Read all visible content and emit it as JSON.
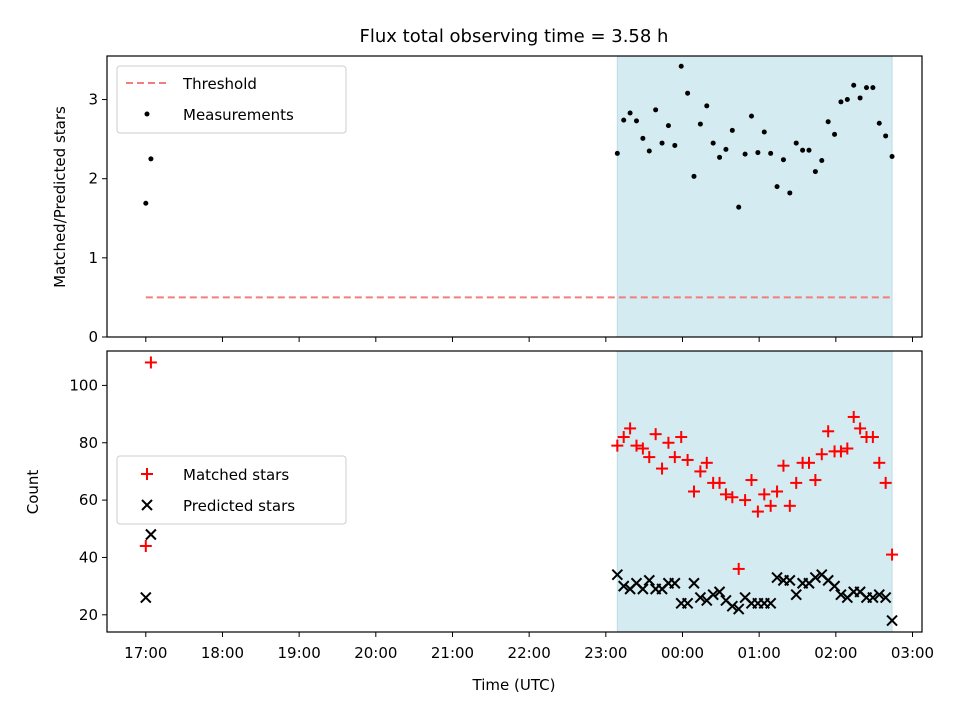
{
  "chart_data": [
    {
      "type": "scatter",
      "title": "Flux total observing time = 3.58 h",
      "ylabel": "Matched/Predicted stars",
      "xlabel": "",
      "ylim": [
        0,
        3.55
      ],
      "yticks": [
        0,
        1,
        2,
        3
      ],
      "legend_position": "upper-left",
      "shaded_region": {
        "start": "23:09",
        "end": "02:44",
        "color": "#d4ebf1"
      },
      "threshold": {
        "name": "Threshold",
        "value": 0.5,
        "x_start": "17:00",
        "x_end": "02:44",
        "color": "#f17d7d"
      },
      "series": [
        {
          "name": "Measurements",
          "color": "#000000",
          "x": [
            "17:00",
            "17:04",
            "23:09",
            "23:14",
            "23:19",
            "23:24",
            "23:29",
            "23:34",
            "23:39",
            "23:44",
            "23:49",
            "23:54",
            "23:59",
            "00:04",
            "00:09",
            "00:14",
            "00:19",
            "00:24",
            "00:29",
            "00:34",
            "00:39",
            "00:44",
            "00:49",
            "00:54",
            "00:59",
            "01:04",
            "01:09",
            "01:14",
            "01:19",
            "01:24",
            "01:29",
            "01:34",
            "01:39",
            "01:44",
            "01:49",
            "01:54",
            "01:59",
            "02:04",
            "02:09",
            "02:14",
            "02:19",
            "02:24",
            "02:29",
            "02:34",
            "02:39",
            "02:44"
          ],
          "y": [
            1.69,
            2.25,
            2.32,
            2.74,
            2.83,
            2.73,
            2.51,
            2.35,
            2.87,
            2.45,
            2.67,
            2.42,
            3.42,
            3.08,
            2.03,
            2.69,
            2.92,
            2.45,
            2.27,
            2.37,
            2.61,
            1.64,
            2.31,
            2.79,
            2.33,
            2.59,
            2.32,
            1.9,
            2.24,
            1.82,
            2.45,
            2.36,
            2.36,
            2.09,
            2.23,
            2.72,
            2.56,
            2.97,
            3.0,
            3.18,
            3.02,
            3.15,
            3.15,
            2.7,
            2.54,
            2.28
          ]
        }
      ]
    },
    {
      "type": "scatter",
      "title": "",
      "ylabel": "Count",
      "xlabel": "Time (UTC)",
      "ylim": [
        14,
        112
      ],
      "yticks": [
        20,
        40,
        60,
        80,
        100
      ],
      "x_ticks": [
        "17:00",
        "18:00",
        "19:00",
        "20:00",
        "21:00",
        "22:00",
        "23:00",
        "00:00",
        "01:00",
        "02:00",
        "03:00"
      ],
      "legend_position": "center-left",
      "shaded_region": {
        "start": "23:09",
        "end": "02:44",
        "color": "#d4ebf1"
      },
      "series": [
        {
          "name": "Matched stars",
          "marker": "plus",
          "color": "#ff0000",
          "x": [
            "17:00",
            "17:04",
            "23:09",
            "23:14",
            "23:19",
            "23:24",
            "23:29",
            "23:34",
            "23:39",
            "23:44",
            "23:49",
            "23:54",
            "23:59",
            "00:04",
            "00:09",
            "00:14",
            "00:19",
            "00:24",
            "00:29",
            "00:34",
            "00:39",
            "00:44",
            "00:49",
            "00:54",
            "00:59",
            "01:04",
            "01:09",
            "01:14",
            "01:19",
            "01:24",
            "01:29",
            "01:34",
            "01:39",
            "01:44",
            "01:49",
            "01:54",
            "01:59",
            "02:04",
            "02:09",
            "02:14",
            "02:19",
            "02:24",
            "02:29",
            "02:34",
            "02:39",
            "02:44"
          ],
          "y": [
            44,
            108,
            79,
            82,
            85,
            79,
            78,
            75,
            83,
            71,
            80,
            75,
            82,
            74,
            63,
            70,
            73,
            66,
            66,
            62,
            61,
            36,
            60,
            67,
            56,
            62,
            58,
            63,
            72,
            58,
            66,
            73,
            73,
            67,
            76,
            84,
            77,
            77,
            78,
            89,
            85,
            82,
            82,
            73,
            66,
            41
          ]
        },
        {
          "name": "Predicted stars",
          "marker": "x",
          "color": "#000000",
          "x": [
            "17:00",
            "17:04",
            "23:09",
            "23:14",
            "23:19",
            "23:24",
            "23:29",
            "23:34",
            "23:39",
            "23:44",
            "23:49",
            "23:54",
            "23:59",
            "00:04",
            "00:09",
            "00:14",
            "00:19",
            "00:24",
            "00:29",
            "00:34",
            "00:39",
            "00:44",
            "00:49",
            "00:54",
            "00:59",
            "01:04",
            "01:09",
            "01:14",
            "01:19",
            "01:24",
            "01:29",
            "01:34",
            "01:39",
            "01:44",
            "01:49",
            "01:54",
            "01:59",
            "02:04",
            "02:09",
            "02:14",
            "02:19",
            "02:24",
            "02:29",
            "02:34",
            "02:39",
            "02:44"
          ],
          "y": [
            26,
            48,
            34,
            30,
            29,
            31,
            29,
            32,
            29,
            29,
            31,
            31,
            24,
            24,
            31,
            26,
            25,
            27,
            28,
            25,
            23,
            22,
            26,
            24,
            24,
            24,
            24,
            33,
            32,
            32,
            27,
            31,
            31,
            33,
            34,
            32,
            30,
            27,
            26,
            28,
            28,
            26,
            26,
            27,
            26,
            18
          ]
        }
      ]
    }
  ]
}
